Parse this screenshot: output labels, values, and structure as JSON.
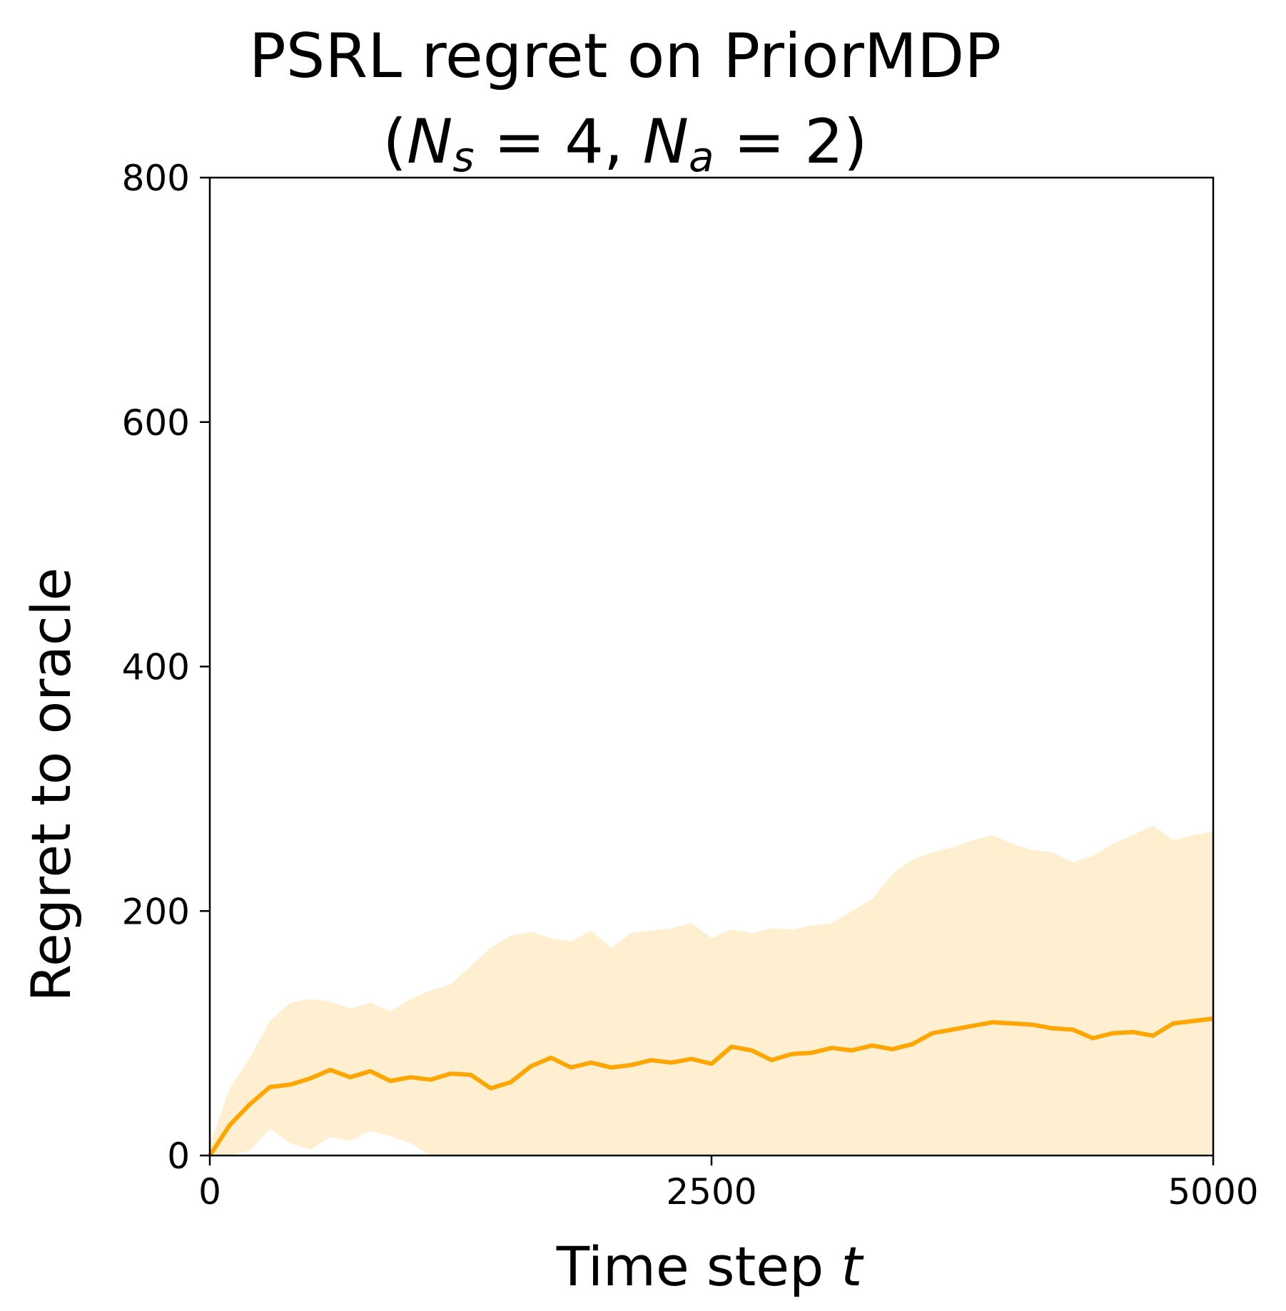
{
  "chart_data": {
    "type": "line",
    "title": "PSRL regret on PriorMDP",
    "subtitle": "(N_s = 4, N_a = 2)",
    "subtitle_parts": {
      "open": "(",
      "n1": "N",
      "s1": "s",
      "eq1": " = 4, ",
      "n2": "N",
      "s2": "a",
      "eq2": " = 2)"
    },
    "xlabel": "Time step t",
    "xlabel_parts": {
      "text": "Time step ",
      "var": "t"
    },
    "ylabel": "Regret to oracle",
    "xlim": [
      0,
      5000
    ],
    "ylim": [
      0,
      800
    ],
    "xticks": [
      "0",
      "2500",
      "5000"
    ],
    "yticks": [
      "0",
      "200",
      "400",
      "600",
      "800"
    ],
    "grid": false,
    "legend": "none",
    "colors": {
      "line": "#FFA500",
      "band": "#FFA500",
      "band_opacity": 0.18
    },
    "series": [
      {
        "x": [
          0,
          100,
          200,
          300,
          400,
          500,
          600,
          700,
          800,
          900,
          1000,
          1100,
          1200,
          1300,
          1400,
          1500,
          1600,
          1700,
          1800,
          1900,
          2000,
          2100,
          2200,
          2300,
          2400,
          2500,
          2600,
          2700,
          2800,
          2900,
          3000,
          3100,
          3200,
          3300,
          3400,
          3500,
          3600,
          3700,
          3800,
          3900,
          4000,
          4100,
          4200,
          4300,
          4400,
          4500,
          4600,
          4700,
          4800,
          4900,
          5000
        ],
        "y": [
          0,
          25,
          42,
          56,
          58,
          63,
          70,
          64,
          69,
          61,
          64,
          62,
          67,
          66,
          55,
          60,
          73,
          80,
          72,
          76,
          72,
          74,
          78,
          76,
          79,
          75,
          89,
          86,
          78,
          83,
          84,
          88,
          86,
          90,
          87,
          91,
          100,
          103,
          106,
          109,
          108,
          107,
          104,
          103,
          96,
          100,
          101,
          98,
          108,
          110,
          112
        ],
        "upper": [
          10,
          55,
          80,
          110,
          125,
          128,
          126,
          120,
          125,
          118,
          128,
          135,
          140,
          155,
          170,
          180,
          183,
          178,
          175,
          184,
          170,
          182,
          184,
          186,
          190,
          178,
          185,
          182,
          186,
          185,
          188,
          190,
          200,
          210,
          230,
          242,
          248,
          252,
          258,
          262,
          255,
          250,
          248,
          240,
          245,
          255,
          262,
          270,
          258,
          262,
          265
        ],
        "lower": [
          0,
          0,
          4,
          22,
          10,
          5,
          15,
          12,
          20,
          16,
          10,
          0,
          0,
          0,
          0,
          0,
          0,
          0,
          0,
          0,
          0,
          0,
          0,
          0,
          0,
          0,
          0,
          0,
          0,
          0,
          0,
          0,
          0,
          0,
          0,
          0,
          0,
          0,
          0,
          0,
          0,
          0,
          0,
          0,
          0,
          0,
          0,
          0,
          0,
          0,
          0
        ]
      }
    ]
  }
}
